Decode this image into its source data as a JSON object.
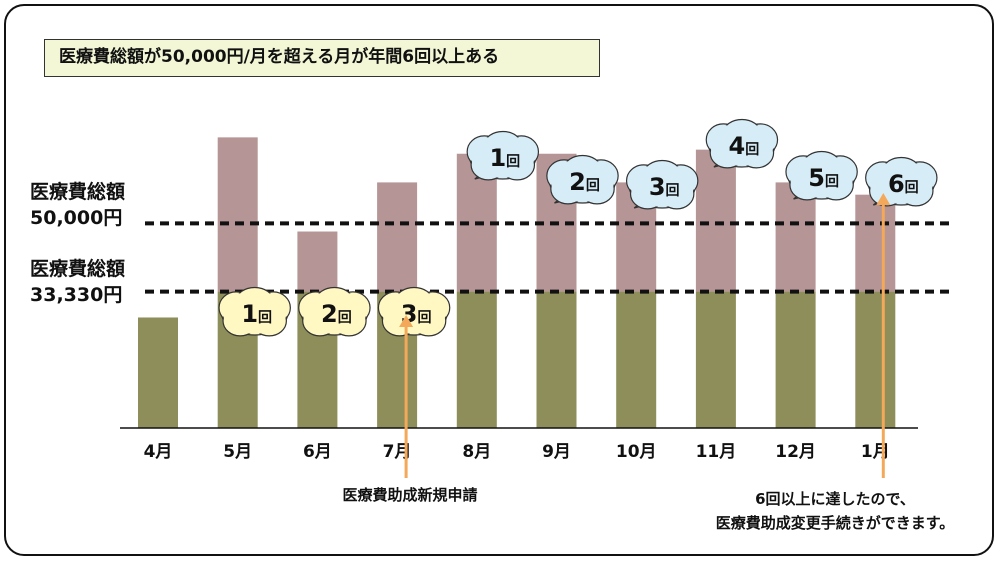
{
  "title": "医療費総額が50,000円/月を超える月が年間6回以上ある",
  "reference_lines": [
    {
      "label_line1": "医療費総額",
      "label_line2": "50,000円",
      "value": 50000
    },
    {
      "label_line1": "医療費総額",
      "label_line2": "33,330円",
      "value": 33330
    }
  ],
  "chart_data": {
    "type": "bar",
    "categories": [
      "4月",
      "5月",
      "6月",
      "7月",
      "8月",
      "9月",
      "10月",
      "11月",
      "12月",
      "1月"
    ],
    "values": [
      27000,
      71000,
      48000,
      60000,
      67000,
      67000,
      60000,
      68000,
      60000,
      57000
    ],
    "ylim": [
      0,
      75000
    ],
    "colors": {
      "below_threshold": "#8e8e5a",
      "above_threshold": "#b59595"
    },
    "bubbles_lower": [
      {
        "category": "5月",
        "label": "1回",
        "color": "#fff8c2"
      },
      {
        "category": "6月",
        "label": "2回",
        "color": "#fff8c2"
      },
      {
        "category": "7月",
        "label": "3回",
        "color": "#fff8c2"
      }
    ],
    "bubbles_upper": [
      {
        "category": "8月",
        "label": "1回",
        "color": "#d6edf8"
      },
      {
        "category": "9月",
        "label": "2回",
        "color": "#d6edf8"
      },
      {
        "category": "10月",
        "label": "3回",
        "color": "#d6edf8"
      },
      {
        "category": "11月",
        "label": "4回",
        "color": "#d6edf8"
      },
      {
        "category": "12月",
        "label": "5回",
        "color": "#d6edf8"
      },
      {
        "category": "1月",
        "label": "6回",
        "color": "#d6edf8"
      }
    ]
  },
  "annotations": {
    "apply": {
      "text": "医療費助成新規申請",
      "arrow_color": "#f4a85a",
      "category": "7月"
    },
    "change_line1": "6回以上に達したので、",
    "change_line2": "医療費助成変更手続きができます。",
    "change_arrow_category": "1月"
  }
}
